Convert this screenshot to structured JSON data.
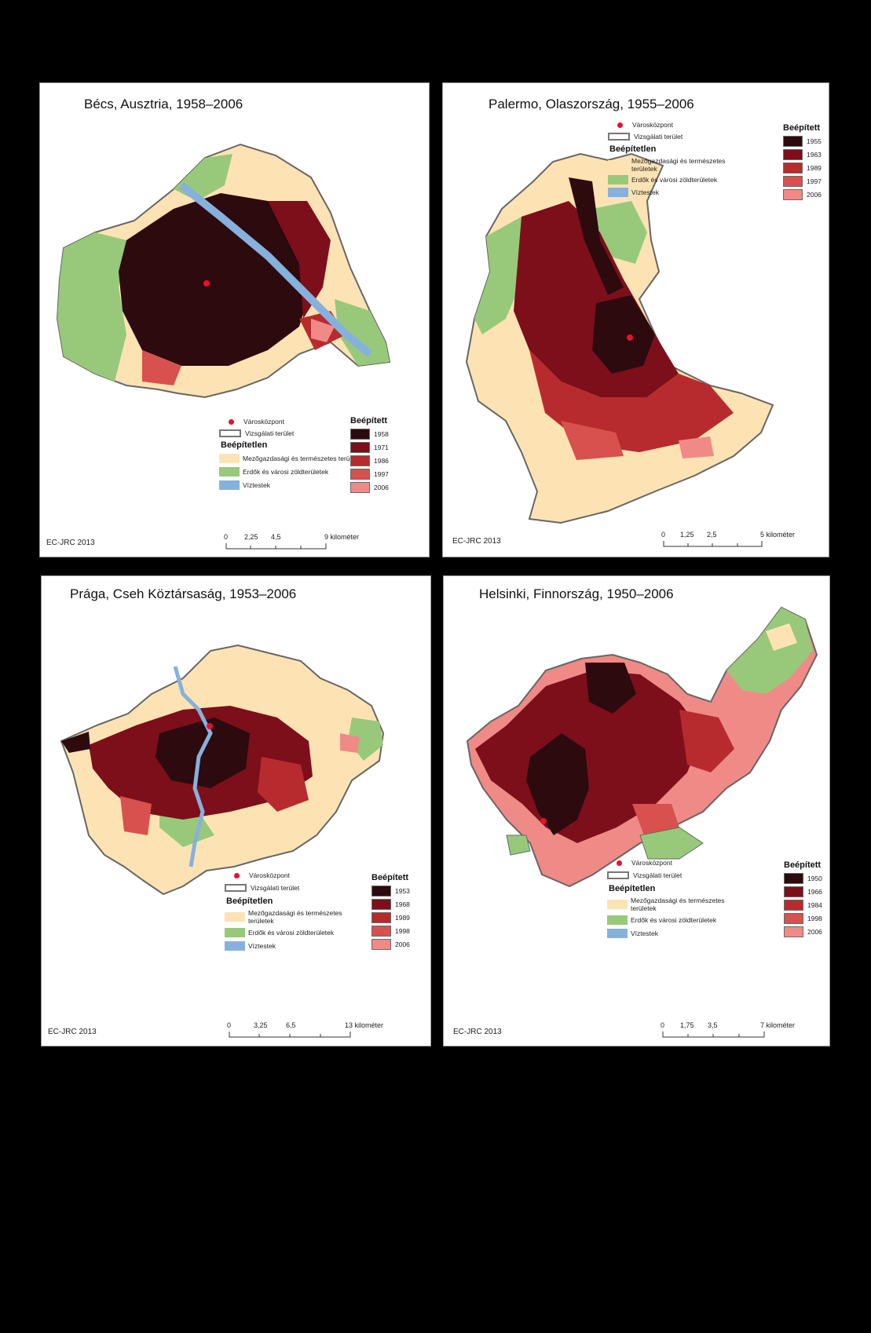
{
  "panels": [
    {
      "id": "vienna",
      "title": "Bécs, Ausztria, 1958–2006",
      "credit": "EC-JRC 2013",
      "legend": {
        "city_center": "Városközpont",
        "study_area": "Vizsgálati terület",
        "unbuilt_heading": "Beépítetlen",
        "agri": "Mezőgazdasági és természetes területek",
        "forest": "Erdők és városi zöldterületek",
        "water": "Víztestek",
        "built_heading": "Beépített",
        "years": [
          "1958",
          "1971",
          "1986",
          "1997",
          "2006"
        ]
      },
      "scale": {
        "ticks": [
          "0",
          "2,25",
          "4,5",
          "9 kilométer"
        ]
      }
    },
    {
      "id": "palermo",
      "title": "Palermo, Olaszország, 1955–2006",
      "credit": "EC-JRC 2013",
      "legend": {
        "city_center": "Városközpont",
        "study_area": "Vizsgálati terület",
        "unbuilt_heading": "Beépítetlen",
        "agri": "Mezőgazdasági és természetes területek",
        "forest": "Erdők és városi zöldterületek",
        "water": "Víztestek",
        "built_heading": "Beépített",
        "years": [
          "1955",
          "1963",
          "1989",
          "1997",
          "2006"
        ]
      },
      "scale": {
        "ticks": [
          "0",
          "1,25",
          "2,5",
          "5 kilométer"
        ]
      }
    },
    {
      "id": "prague",
      "title": "Prága, Cseh Köztársaság, 1953–2006",
      "credit": "EC-JRC 2013",
      "legend": {
        "city_center": "Városközpont",
        "study_area": "Vizsgálati terület",
        "unbuilt_heading": "Beépítetlen",
        "agri": "Mezőgazdasági és természetes területek",
        "forest": "Erdők és városi zöldterületek",
        "water": "Víztestek",
        "built_heading": "Beépített",
        "years": [
          "1953",
          "1968",
          "1989",
          "1998",
          "2006"
        ]
      },
      "scale": {
        "ticks": [
          "0",
          "3,25",
          "6,5",
          "13 kilométer"
        ]
      }
    },
    {
      "id": "helsinki",
      "title": "Helsinki, Finnország, 1950–2006",
      "credit": "EC-JRC 2013",
      "legend": {
        "city_center": "Városközpont",
        "study_area": "Vizsgálati terület",
        "unbuilt_heading": "Beépítetlen",
        "agri": "Mezőgazdasági és természetes területek",
        "forest": "Erdők és városi zöldterületek",
        "water": "Víztestek",
        "built_heading": "Beépített",
        "years": [
          "1950",
          "1966",
          "1984",
          "1998",
          "2006"
        ]
      },
      "scale": {
        "ticks": [
          "0",
          "1,75",
          "3,5",
          "7 kilométer"
        ]
      }
    }
  ],
  "colors": {
    "agri": "#fde3b4",
    "forest": "#98c97a",
    "water": "#86b1dc",
    "center": "#e8112d",
    "built_1": "#2c0a0e",
    "built_2": "#7d0f1a",
    "built_3": "#b72b2e",
    "built_4": "#d8514e",
    "built_5": "#f08a86"
  }
}
